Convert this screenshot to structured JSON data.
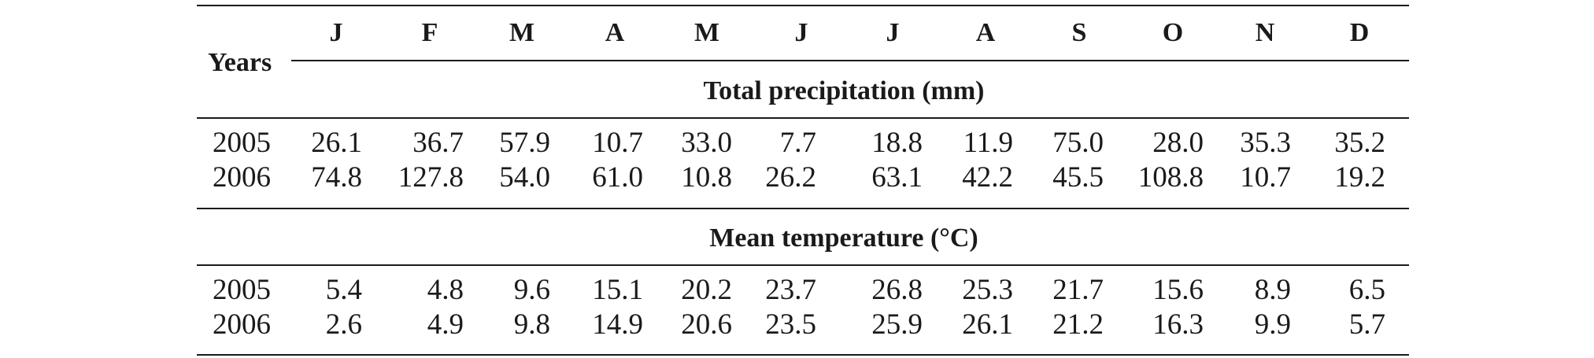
{
  "table": {
    "row_header": "Years",
    "months": [
      "J",
      "F",
      "M",
      "A",
      "M",
      "J",
      "J",
      "A",
      "S",
      "O",
      "N",
      "D"
    ],
    "sections": [
      {
        "title": "Total precipitation (mm)",
        "rows": [
          {
            "year": "2005",
            "values": [
              "26.1",
              "36.7",
              "57.9",
              "10.7",
              "33.0",
              "7.7",
              "18.8",
              "11.9",
              "75.0",
              "28.0",
              "35.3",
              "35.2"
            ]
          },
          {
            "year": "2006",
            "values": [
              "74.8",
              "127.8",
              "54.0",
              "61.0",
              "10.8",
              "26.2",
              "63.1",
              "42.2",
              "45.5",
              "108.8",
              "10.7",
              "19.2"
            ]
          }
        ]
      },
      {
        "title": "Mean temperature (°C)",
        "rows": [
          {
            "year": "2005",
            "values": [
              "5.4",
              "4.8",
              "9.6",
              "15.1",
              "20.2",
              "23.7",
              "26.8",
              "25.3",
              "21.7",
              "15.6",
              "8.9",
              "6.5"
            ]
          },
          {
            "year": "2006",
            "values": [
              "2.6",
              "4.9",
              "9.8",
              "14.9",
              "20.6",
              "23.5",
              "25.9",
              "26.1",
              "21.2",
              "16.3",
              "9.9",
              "5.7"
            ]
          }
        ]
      }
    ]
  }
}
